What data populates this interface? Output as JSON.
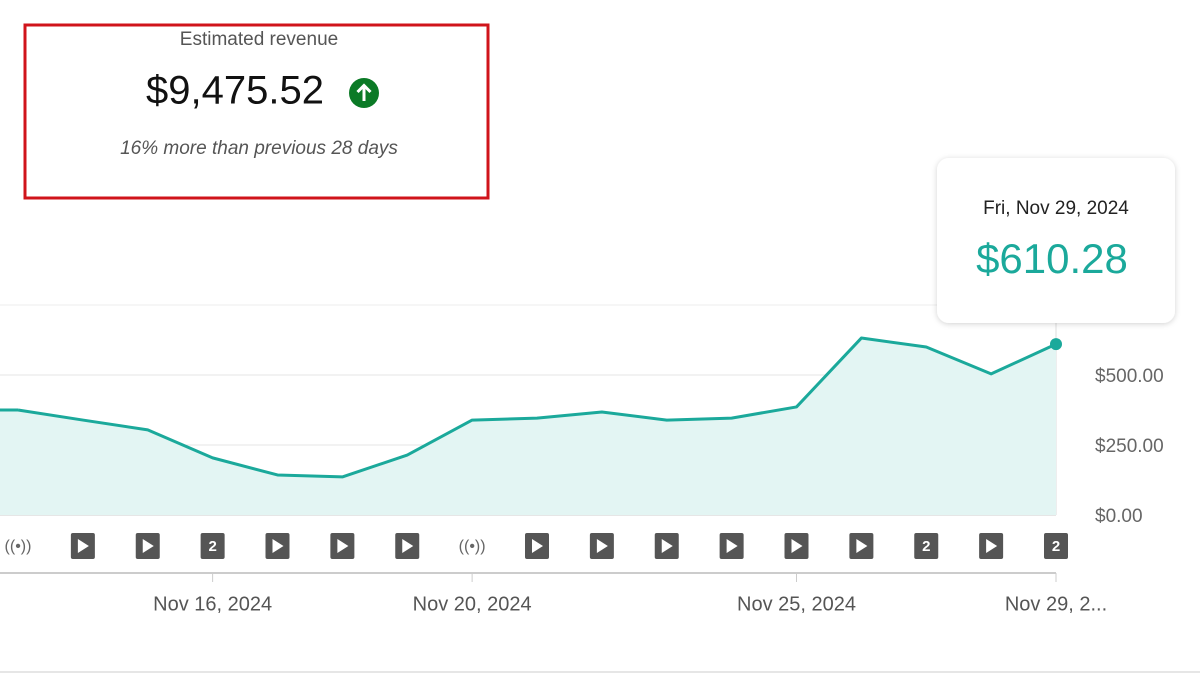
{
  "metric_card": {
    "label": "Estimated revenue",
    "value": "$9,475.52",
    "comparison": "16% more than previous 28 days"
  },
  "chart_data": {
    "type": "line",
    "categories": [
      null,
      null,
      null,
      "Nov 16, 2024",
      null,
      null,
      null,
      "Nov 20, 2024",
      null,
      null,
      null,
      null,
      "Nov 25, 2024",
      null,
      null,
      null,
      "Nov 29, 2..."
    ],
    "values": [
      375,
      339,
      304,
      204,
      143,
      136,
      214,
      339,
      346,
      368,
      339,
      346,
      386,
      632,
      600,
      504,
      610.28
    ],
    "value_labels": [
      null,
      null,
      null,
      null,
      null,
      null,
      null,
      null,
      null,
      null,
      null,
      null,
      null,
      null,
      null,
      null,
      "$610.28"
    ],
    "markers": [
      "((•))",
      null,
      null,
      "2",
      null,
      null,
      null,
      "((•))",
      null,
      null,
      null,
      null,
      null,
      null,
      "2",
      null,
      "2"
    ],
    "tooltip": {
      "title": "Fri, Nov 29, 2024"
    },
    "color": "#1ba99b",
    "area_color": "#e3f5f3",
    "ylim": [
      0,
      750
    ],
    "yticks": [
      {
        "value": 0,
        "label": "$0.00"
      },
      {
        "value": 250,
        "label": "$250.00"
      },
      {
        "value": 500,
        "label": "$500.00"
      }
    ],
    "grid": true
  }
}
